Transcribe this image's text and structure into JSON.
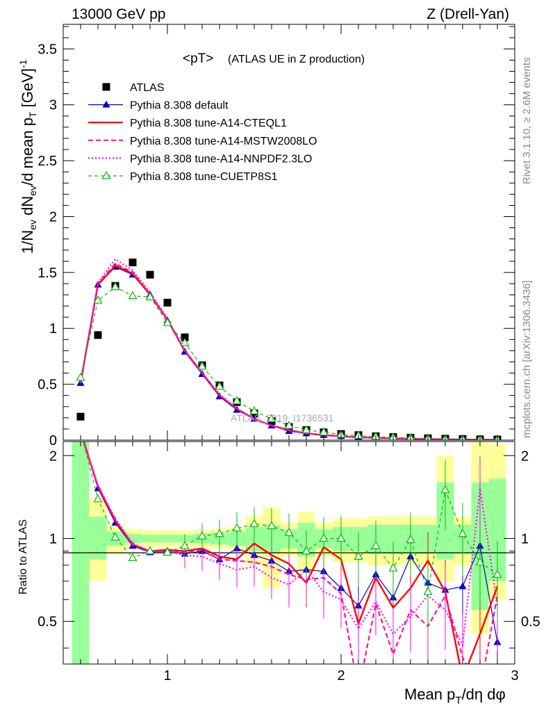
{
  "header": {
    "left": "13000 GeV pp",
    "right": "Z (Drell-Yan)"
  },
  "side_labels": {
    "rivet": "Rivet 3.1.10, ≥ 2.6M events",
    "mcplots": "mcplots.cern.ch [arXiv:1306.3436]"
  },
  "chart_data": {
    "type": "scatter",
    "title_main": "<pT>",
    "title_sub": "(ATLAS UE in Z production)",
    "watermark": "ATLAS_2019_I1736531",
    "xlabel": "Mean pT/dη dφ",
    "ylabel_top": "1/Nev dNev/d mean pT [GeV]-1",
    "ylabel_bottom": "Ratio to ATLAS",
    "xlim": [
      0.4,
      3.0
    ],
    "ylim_top": [
      0,
      3.72
    ],
    "ylim_bottom": [
      0.35,
      2.25
    ],
    "x_ticks": [
      "1",
      "2",
      "3"
    ],
    "y_ticks_top": [
      "0",
      "0.5",
      "1",
      "1.5",
      "2",
      "2.5",
      "3",
      "3.5"
    ],
    "y_ticks_bottom": [
      "0.5",
      "1",
      "2"
    ],
    "x": [
      0.5,
      0.6,
      0.7,
      0.8,
      0.9,
      1.0,
      1.1,
      1.2,
      1.3,
      1.4,
      1.5,
      1.6,
      1.7,
      1.8,
      1.9,
      2.0,
      2.1,
      2.2,
      2.3,
      2.4,
      2.5,
      2.6,
      2.7,
      2.8,
      2.9
    ],
    "series": [
      {
        "name": "ATLAS",
        "style": "data",
        "color": "#000000",
        "values": [
          0.21,
          0.94,
          1.38,
          1.59,
          1.48,
          1.23,
          0.92,
          0.67,
          0.49,
          0.34,
          0.24,
          0.17,
          0.12,
          0.09,
          0.07,
          0.055,
          0.045,
          0.035,
          0.028,
          0.022,
          0.017,
          0.013,
          0.01,
          0.008,
          0.006
        ]
      },
      {
        "name": "Pythia 8.308 default",
        "style": "default",
        "color": "#0000cc",
        "values": [
          0.51,
          1.39,
          1.55,
          1.48,
          1.3,
          1.07,
          0.79,
          0.59,
          0.39,
          0.27,
          0.19,
          0.13,
          0.08,
          0.06,
          0.045,
          0.035,
          0.025,
          0.02,
          0.015,
          0.012,
          0.009,
          0.007,
          0.005,
          0.004,
          0.003
        ],
        "ratio": [
          2.45,
          1.52,
          1.14,
          0.94,
          0.89,
          0.9,
          0.88,
          0.9,
          0.84,
          0.92,
          0.87,
          0.83,
          0.76,
          0.77,
          0.76,
          0.66,
          0.57,
          0.74,
          0.61,
          0.86,
          0.69,
          0.65,
          0.67,
          0.94,
          0.42
        ]
      },
      {
        "name": "Pythia 8.308 tune-A14-CTEQL1",
        "style": "cteq",
        "color": "#ff0000",
        "values": [
          0.51,
          1.39,
          1.56,
          1.49,
          1.3,
          1.08,
          0.8,
          0.6,
          0.4,
          0.28,
          0.19,
          0.13,
          0.09,
          0.06,
          0.045,
          0.035,
          0.025,
          0.02,
          0.015,
          0.012,
          0.009,
          0.007,
          0.005,
          0.004,
          0.003
        ],
        "ratio": [
          2.45,
          1.54,
          1.16,
          0.95,
          0.9,
          0.91,
          0.9,
          0.92,
          0.86,
          0.84,
          0.96,
          0.87,
          0.81,
          0.69,
          0.93,
          0.84,
          0.49,
          0.72,
          0.56,
          0.66,
          0.83,
          0.64,
          0.31,
          0.45,
          0.67
        ]
      },
      {
        "name": "Pythia 8.308 tune-A14-MSTW2008LO",
        "style": "mstw",
        "color": "#ff1493",
        "values": [
          0.51,
          1.4,
          1.58,
          1.5,
          1.31,
          1.08,
          0.8,
          0.6,
          0.4,
          0.28,
          0.19,
          0.13,
          0.09,
          0.06,
          0.045,
          0.035,
          0.025,
          0.02,
          0.015,
          0.012,
          0.009,
          0.007,
          0.005,
          0.004,
          0.003
        ],
        "ratio": [
          2.45,
          1.55,
          1.17,
          0.95,
          0.9,
          0.9,
          0.89,
          0.91,
          0.84,
          0.83,
          0.82,
          0.79,
          0.74,
          0.71,
          0.72,
          0.63,
          0.28,
          0.58,
          0.38,
          0.55,
          0.48,
          0.62,
          0.37,
          0.28,
          0.62
        ]
      },
      {
        "name": "Pythia 8.308 tune-A14-NNPDF2.3LO",
        "style": "nnpdf",
        "color": "#ff00ff",
        "values": [
          0.52,
          1.41,
          1.62,
          1.52,
          1.32,
          1.09,
          0.8,
          0.6,
          0.41,
          0.28,
          0.19,
          0.13,
          0.09,
          0.06,
          0.045,
          0.035,
          0.025,
          0.02,
          0.015,
          0.012,
          0.009,
          0.007,
          0.005,
          0.004,
          0.003
        ],
        "ratio": [
          2.45,
          1.56,
          1.18,
          0.96,
          0.89,
          0.9,
          0.87,
          0.86,
          0.81,
          0.77,
          0.79,
          0.72,
          0.68,
          0.77,
          0.64,
          0.6,
          0.47,
          0.59,
          0.45,
          0.52,
          0.62,
          0.55,
          0.41,
          1.52,
          0.57
        ]
      },
      {
        "name": "Pythia 8.308 tune-CUETP8S1",
        "style": "cuetp",
        "color": "#00cc00",
        "values": [
          0.56,
          1.25,
          1.37,
          1.29,
          1.28,
          1.05,
          0.87,
          0.66,
          0.48,
          0.35,
          0.26,
          0.19,
          0.13,
          0.09,
          0.07,
          0.05,
          0.04,
          0.03,
          0.025,
          0.02,
          0.015,
          0.012,
          0.009,
          0.007,
          0.005
        ],
        "ratio": [
          2.45,
          1.39,
          1.01,
          0.85,
          0.9,
          0.89,
          0.94,
          1.02,
          1.04,
          1.09,
          1.13,
          1.11,
          1.05,
          0.9,
          1.0,
          1.0,
          0.86,
          0.94,
          0.78,
          0.99,
          0.64,
          1.5,
          1.04,
          0.82,
          0.74
        ]
      }
    ],
    "bands_ratio": {
      "x_edges": [
        0.45,
        0.55,
        0.65,
        0.75,
        0.85,
        0.95,
        1.05,
        1.15,
        1.25,
        1.35,
        1.45,
        1.55,
        1.65,
        1.75,
        1.85,
        1.95,
        2.05,
        2.15,
        2.25,
        2.35,
        2.45,
        2.55,
        2.65,
        2.75,
        2.85,
        2.95
      ],
      "yellow": [
        [
          0.35,
          2.25
        ],
        [
          0.7,
          1.4
        ],
        [
          0.88,
          1.12
        ],
        [
          0.92,
          1.08
        ],
        [
          0.93,
          1.07
        ],
        [
          0.93,
          1.07
        ],
        [
          0.93,
          1.07
        ],
        [
          0.93,
          1.07
        ],
        [
          0.92,
          1.08
        ],
        [
          0.9,
          1.1
        ],
        [
          0.8,
          1.2
        ],
        [
          0.66,
          1.3
        ],
        [
          0.86,
          1.14
        ],
        [
          0.75,
          1.25
        ],
        [
          0.86,
          1.14
        ],
        [
          0.82,
          1.18
        ],
        [
          0.82,
          1.18
        ],
        [
          0.8,
          1.2
        ],
        [
          0.8,
          1.2
        ],
        [
          0.8,
          1.2
        ],
        [
          0.8,
          1.2
        ],
        [
          0.7,
          2.0
        ],
        [
          0.8,
          1.2
        ],
        [
          0.45,
          2.25
        ],
        [
          0.6,
          2.2
        ]
      ],
      "green": [
        [
          0.35,
          2.25
        ],
        [
          0.84,
          1.2
        ],
        [
          0.94,
          1.06
        ],
        [
          0.96,
          1.04
        ],
        [
          0.97,
          1.03
        ],
        [
          0.97,
          1.03
        ],
        [
          0.97,
          1.03
        ],
        [
          0.96,
          1.04
        ],
        [
          0.95,
          1.05
        ],
        [
          0.94,
          1.06
        ],
        [
          0.9,
          1.1
        ],
        [
          0.88,
          1.12
        ],
        [
          0.92,
          1.08
        ],
        [
          0.86,
          1.14
        ],
        [
          0.92,
          1.08
        ],
        [
          0.9,
          1.1
        ],
        [
          0.9,
          1.1
        ],
        [
          0.88,
          1.12
        ],
        [
          0.88,
          1.12
        ],
        [
          0.88,
          1.12
        ],
        [
          0.88,
          1.12
        ],
        [
          0.84,
          1.6
        ],
        [
          0.88,
          1.12
        ],
        [
          0.55,
          1.6
        ],
        [
          0.7,
          1.65
        ]
      ]
    }
  }
}
